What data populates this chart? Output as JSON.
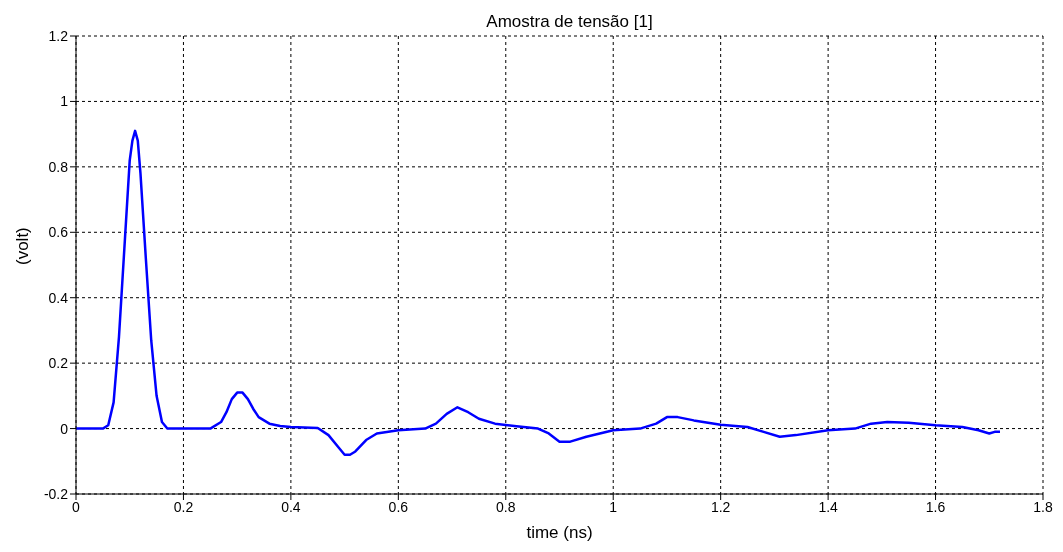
{
  "chart_data": {
    "type": "line",
    "title": "Amostra de tensão [1]",
    "xlabel": "time (ns)",
    "ylabel": "(volt)",
    "x": [
      0,
      0.05,
      0.06,
      0.07,
      0.08,
      0.09,
      0.1,
      0.105,
      0.11,
      0.115,
      0.12,
      0.13,
      0.14,
      0.15,
      0.16,
      0.17,
      0.2,
      0.25,
      0.27,
      0.28,
      0.29,
      0.3,
      0.31,
      0.32,
      0.33,
      0.34,
      0.36,
      0.38,
      0.4,
      0.45,
      0.47,
      0.49,
      0.5,
      0.51,
      0.52,
      0.54,
      0.56,
      0.6,
      0.65,
      0.67,
      0.69,
      0.71,
      0.73,
      0.75,
      0.78,
      0.82,
      0.86,
      0.88,
      0.9,
      0.92,
      0.95,
      1.0,
      1.05,
      1.08,
      1.1,
      1.12,
      1.15,
      1.2,
      1.25,
      1.28,
      1.31,
      1.34,
      1.4,
      1.45,
      1.48,
      1.51,
      1.55,
      1.6,
      1.65,
      1.68,
      1.7,
      1.71,
      1.72
    ],
    "series": [
      {
        "color": "#0000ff",
        "values": [
          0,
          0,
          0.01,
          0.08,
          0.28,
          0.55,
          0.82,
          0.88,
          0.91,
          0.88,
          0.78,
          0.52,
          0.27,
          0.1,
          0.02,
          0,
          0,
          0,
          0.02,
          0.05,
          0.09,
          0.11,
          0.11,
          0.09,
          0.06,
          0.035,
          0.015,
          0.008,
          0.005,
          0.002,
          -0.02,
          -0.06,
          -0.08,
          -0.08,
          -0.07,
          -0.035,
          -0.015,
          -0.005,
          0,
          0.015,
          0.045,
          0.065,
          0.05,
          0.03,
          0.015,
          0.007,
          0,
          -0.015,
          -0.04,
          -0.04,
          -0.025,
          -0.005,
          0,
          0.015,
          0.035,
          0.035,
          0.025,
          0.012,
          0.005,
          -0.01,
          -0.025,
          -0.02,
          -0.005,
          0,
          0.015,
          0.02,
          0.018,
          0.01,
          0.005,
          -0.005,
          -0.015,
          -0.01,
          -0.01
        ]
      }
    ],
    "xlim": [
      0,
      1.8
    ],
    "xticks": [
      0,
      0.2,
      0.4,
      0.6,
      0.8,
      1,
      1.2,
      1.4,
      1.6,
      1.8
    ],
    "ylim": [
      -0.2,
      1.2
    ],
    "yticks": [
      -0.2,
      0,
      0.2,
      0.4,
      0.6,
      0.8,
      1,
      1.2
    ],
    "grid": true,
    "line_style": "solid",
    "marker": "none"
  }
}
